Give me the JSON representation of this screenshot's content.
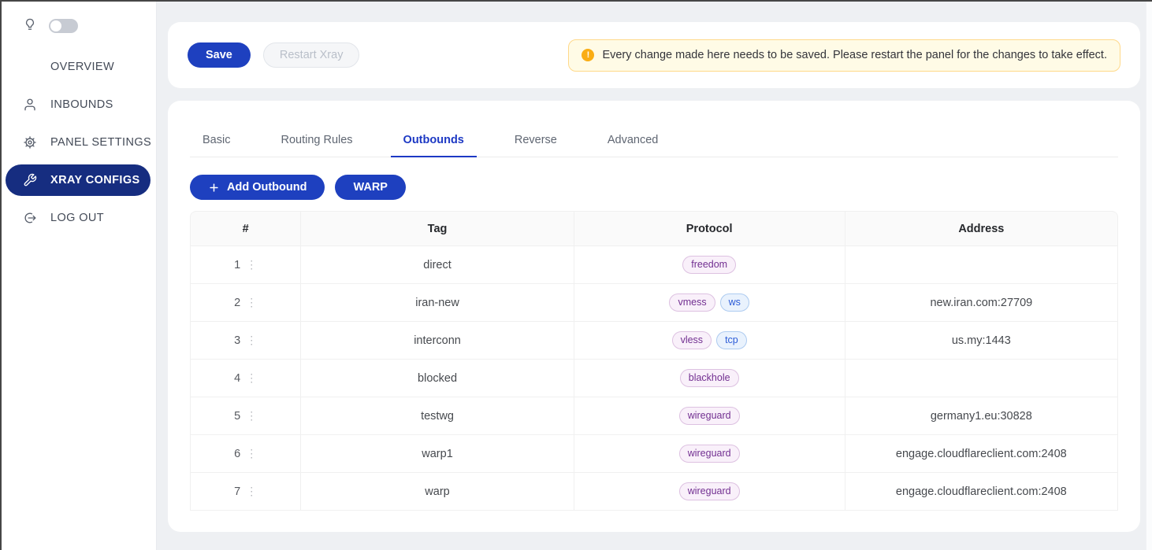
{
  "colors": {
    "page_bg": "#eef0f3",
    "accent": "#1e40bf",
    "accent_dark": "#162d80",
    "tab_active": "#1d39c4",
    "warning_bg": "#fffbe6",
    "warning_border": "#ffd98a",
    "warning_icon": "#faad14",
    "badge_pink_bg": "#f9f0fa",
    "badge_pink_border": "#ddc1e1",
    "badge_pink_text": "#722f91",
    "badge_blue_bg": "#e9f2fd",
    "badge_blue_border": "#adcbf0",
    "badge_blue_text": "#2b5bd7"
  },
  "sidebar": {
    "theme_toggle": {
      "icon": "lightbulb-icon",
      "state": "off"
    },
    "items": [
      {
        "id": "overview",
        "label": "OVERVIEW",
        "icon": "gauge-icon",
        "active": false
      },
      {
        "id": "inbounds",
        "label": "INBOUNDS",
        "icon": "user-icon",
        "active": false
      },
      {
        "id": "panel-settings",
        "label": "PANEL SETTINGS",
        "icon": "gear-icon",
        "active": false
      },
      {
        "id": "xray-configs",
        "label": "XRAY CONFIGS",
        "icon": "wrench-icon",
        "active": true
      },
      {
        "id": "log-out",
        "label": "LOG OUT",
        "icon": "logout-icon",
        "active": false
      }
    ]
  },
  "toolbar": {
    "save_label": "Save",
    "restart_label": "Restart Xray"
  },
  "alert": {
    "icon": "warning-icon",
    "icon_glyph": "!",
    "text": "Every change made here needs to be saved. Please restart the panel for the changes to take effect."
  },
  "tabs": {
    "items": [
      {
        "label": "Basic",
        "active": false
      },
      {
        "label": "Routing Rules",
        "active": false
      },
      {
        "label": "Outbounds",
        "active": true
      },
      {
        "label": "Reverse",
        "active": false
      },
      {
        "label": "Advanced",
        "active": false
      }
    ]
  },
  "actions": {
    "add_outbound_label": "Add Outbound",
    "add_outbound_icon": "plus-icon",
    "warp_label": "WARP"
  },
  "table": {
    "columns": [
      "#",
      "Tag",
      "Protocol",
      "Address"
    ],
    "row_menu_icon": "vertical-dots-icon",
    "row_menu_glyph": "⋮",
    "rows": [
      {
        "index": "1",
        "tag": "direct",
        "badges": [
          {
            "label": "freedom",
            "color": "pink"
          }
        ],
        "address": ""
      },
      {
        "index": "2",
        "tag": "iran-new",
        "badges": [
          {
            "label": "vmess",
            "color": "pink"
          },
          {
            "label": "ws",
            "color": "blue"
          }
        ],
        "address": "new.iran.com:27709"
      },
      {
        "index": "3",
        "tag": "interconn",
        "badges": [
          {
            "label": "vless",
            "color": "pink"
          },
          {
            "label": "tcp",
            "color": "blue"
          }
        ],
        "address": "us.my:1443"
      },
      {
        "index": "4",
        "tag": "blocked",
        "badges": [
          {
            "label": "blackhole",
            "color": "pink"
          }
        ],
        "address": ""
      },
      {
        "index": "5",
        "tag": "testwg",
        "badges": [
          {
            "label": "wireguard",
            "color": "pink"
          }
        ],
        "address": "germany1.eu:30828"
      },
      {
        "index": "6",
        "tag": "warp1",
        "badges": [
          {
            "label": "wireguard",
            "color": "pink"
          }
        ],
        "address": "engage.cloudflareclient.com:2408"
      },
      {
        "index": "7",
        "tag": "warp",
        "badges": [
          {
            "label": "wireguard",
            "color": "pink"
          }
        ],
        "address": "engage.cloudflareclient.com:2408"
      }
    ]
  }
}
